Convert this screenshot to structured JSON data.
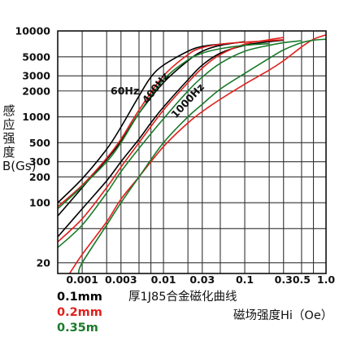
{
  "chart_data": {
    "type": "line",
    "title": "",
    "subtitle": "厚1J85合金磁化曲线",
    "xlabel": "磁场强度Hi（Oe）",
    "ylabel": "感应强度B(Gs)",
    "xscale": "log",
    "yscale": "log",
    "xlim": [
      0.0005,
      1.0
    ],
    "ylim": [
      15,
      10000
    ],
    "x_ticks": [
      {
        "v": 0.001,
        "label": "0.001"
      },
      {
        "v": 0.003,
        "label": "0.003"
      },
      {
        "v": 0.01,
        "label": "0.01"
      },
      {
        "v": 0.03,
        "label": "0.03"
      },
      {
        "v": 0.1,
        "label": "0.1"
      },
      {
        "v": 0.3,
        "label": "0.3"
      },
      {
        "v": 0.5,
        "label": "0.5"
      },
      {
        "v": 1.0,
        "label": "1.0"
      }
    ],
    "x_gridlines": [
      0.001,
      0.002,
      0.003,
      0.005,
      0.007,
      0.01,
      0.02,
      0.03,
      0.05,
      0.1,
      0.2,
      0.3,
      0.5,
      0.7
    ],
    "y_ticks": [
      {
        "v": 20,
        "label": "20"
      },
      {
        "v": 100,
        "label": "100"
      },
      {
        "v": 200,
        "label": "200"
      },
      {
        "v": 300,
        "label": "300"
      },
      {
        "v": 500,
        "label": "500"
      },
      {
        "v": 1000,
        "label": "1000"
      },
      {
        "v": 2000,
        "label": "2000"
      },
      {
        "v": 3000,
        "label": "3000"
      },
      {
        "v": 5000,
        "label": "5000"
      },
      {
        "v": 10000,
        "label": "10000"
      }
    ],
    "y_gridlines": [
      20,
      50,
      100,
      200,
      300,
      500,
      1000,
      2000,
      3000,
      5000,
      10000
    ],
    "grid": true,
    "annotations": [
      "60Hz",
      "400Hz",
      "1000Hz"
    ],
    "legend": [
      {
        "label": "0.1mm",
        "color": "#000000"
      },
      {
        "label": "0.2mm",
        "color": "#e0201c"
      },
      {
        "label": "0.35m",
        "color": "#1a7a2a"
      }
    ],
    "series": [
      {
        "thickness": "0.1mm",
        "frequency": "60Hz",
        "color": "#000000",
        "points": [
          [
            0.0005,
            100
          ],
          [
            0.001,
            190
          ],
          [
            0.002,
            420
          ],
          [
            0.003,
            760
          ],
          [
            0.005,
            1750
          ],
          [
            0.007,
            2900
          ],
          [
            0.01,
            4000
          ],
          [
            0.02,
            5800
          ],
          [
            0.03,
            6600
          ],
          [
            0.05,
            7000
          ]
        ]
      },
      {
        "thickness": "0.1mm",
        "frequency": "400Hz",
        "color": "#000000",
        "points": [
          [
            0.0005,
            70
          ],
          [
            0.001,
            150
          ],
          [
            0.002,
            320
          ],
          [
            0.003,
            520
          ],
          [
            0.005,
            1100
          ],
          [
            0.01,
            2500
          ],
          [
            0.02,
            4500
          ],
          [
            0.03,
            5800
          ],
          [
            0.05,
            6800
          ],
          [
            0.1,
            7500
          ]
        ]
      },
      {
        "thickness": "0.1mm",
        "frequency": "1000Hz",
        "color": "#000000",
        "points": [
          [
            0.0005,
            40
          ],
          [
            0.001,
            85
          ],
          [
            0.002,
            180
          ],
          [
            0.003,
            300
          ],
          [
            0.005,
            550
          ],
          [
            0.007,
            850
          ],
          [
            0.01,
            1300
          ],
          [
            0.02,
            2700
          ],
          [
            0.03,
            4000
          ],
          [
            0.05,
            5500
          ],
          [
            0.1,
            6800
          ],
          [
            0.2,
            7500
          ],
          [
            0.3,
            7800
          ]
        ]
      },
      {
        "thickness": "0.2mm",
        "frequency": "60Hz",
        "color": "#e0201c",
        "points": [
          [
            0.0005,
            90
          ],
          [
            0.001,
            160
          ],
          [
            0.002,
            330
          ],
          [
            0.003,
            550
          ],
          [
            0.005,
            1200
          ],
          [
            0.01,
            3000
          ],
          [
            0.02,
            5300
          ],
          [
            0.03,
            6400
          ],
          [
            0.05,
            7000
          ],
          [
            0.1,
            7400
          ],
          [
            0.2,
            7700
          ],
          [
            0.3,
            7900
          ]
        ]
      },
      {
        "thickness": "0.2mm",
        "frequency": "400Hz",
        "color": "#e0201c",
        "points": [
          [
            0.0005,
            35
          ],
          [
            0.001,
            65
          ],
          [
            0.002,
            150
          ],
          [
            0.003,
            260
          ],
          [
            0.005,
            500
          ],
          [
            0.01,
            1200
          ],
          [
            0.02,
            2500
          ],
          [
            0.03,
            3700
          ],
          [
            0.05,
            5300
          ],
          [
            0.1,
            7000
          ],
          [
            0.2,
            7900
          ],
          [
            0.3,
            8400
          ]
        ]
      },
      {
        "thickness": "0.2mm",
        "frequency": "1000Hz",
        "color": "#e0201c",
        "points": [
          [
            0.0007,
            15
          ],
          [
            0.001,
            25
          ],
          [
            0.002,
            60
          ],
          [
            0.003,
            110
          ],
          [
            0.005,
            200
          ],
          [
            0.01,
            450
          ],
          [
            0.02,
            850
          ],
          [
            0.03,
            1150
          ],
          [
            0.05,
            1600
          ],
          [
            0.1,
            2400
          ],
          [
            0.2,
            3500
          ],
          [
            0.3,
            4500
          ],
          [
            0.5,
            6500
          ],
          [
            0.7,
            8000
          ],
          [
            1.0,
            9000
          ]
        ]
      },
      {
        "thickness": "0.35m",
        "frequency": "60Hz",
        "color": "#1a7a2a",
        "points": [
          [
            0.0005,
            85
          ],
          [
            0.001,
            155
          ],
          [
            0.002,
            300
          ],
          [
            0.003,
            500
          ],
          [
            0.005,
            1100
          ],
          [
            0.01,
            2700
          ],
          [
            0.02,
            4600
          ],
          [
            0.03,
            5500
          ],
          [
            0.05,
            6200
          ],
          [
            0.1,
            6800
          ],
          [
            0.2,
            7100
          ]
        ]
      },
      {
        "thickness": "0.35m",
        "frequency": "400Hz",
        "color": "#1a7a2a",
        "points": [
          [
            0.0005,
            30
          ],
          [
            0.001,
            55
          ],
          [
            0.002,
            130
          ],
          [
            0.003,
            230
          ],
          [
            0.005,
            430
          ],
          [
            0.01,
            950
          ],
          [
            0.02,
            2000
          ],
          [
            0.03,
            2900
          ],
          [
            0.05,
            4200
          ],
          [
            0.1,
            5800
          ],
          [
            0.2,
            6800
          ],
          [
            0.3,
            7300
          ],
          [
            0.5,
            7700
          ]
        ]
      },
      {
        "thickness": "0.35m",
        "frequency": "1000Hz",
        "color": "#1a7a2a",
        "points": [
          [
            0.0009,
            15
          ],
          [
            0.001,
            20
          ],
          [
            0.002,
            55
          ],
          [
            0.003,
            100
          ],
          [
            0.005,
            200
          ],
          [
            0.01,
            500
          ],
          [
            0.02,
            1000
          ],
          [
            0.03,
            1400
          ],
          [
            0.05,
            2100
          ],
          [
            0.1,
            3200
          ],
          [
            0.2,
            4800
          ],
          [
            0.3,
            6000
          ],
          [
            0.5,
            7300
          ],
          [
            0.7,
            7800
          ],
          [
            1.0,
            8000
          ]
        ]
      }
    ]
  }
}
